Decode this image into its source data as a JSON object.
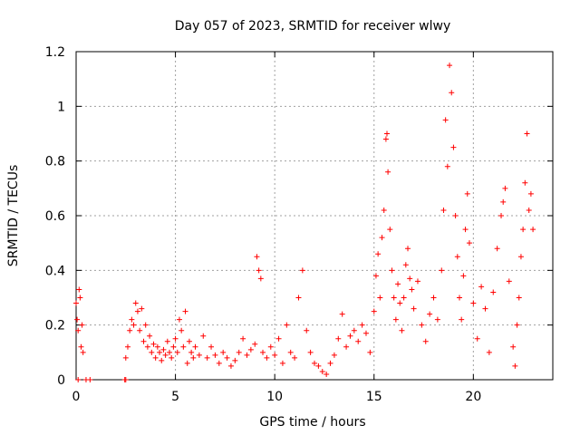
{
  "chart_data": {
    "type": "scatter",
    "title": "Day 057 of 2023, SRMTID for receiver wlwy",
    "xlabel": "GPS time / hours",
    "ylabel": "SRMTID / TECUs",
    "xlim": [
      0,
      24
    ],
    "ylim": [
      0,
      1.2
    ],
    "xticks": [
      0,
      5,
      10,
      15,
      20
    ],
    "xtick_labels": [
      "0",
      "5",
      "10",
      "15",
      "20"
    ],
    "yticks": [
      0,
      0.2,
      0.4,
      0.6,
      0.8,
      1.0,
      1.2
    ],
    "ytick_labels": [
      "0",
      "0.2",
      "0.4",
      "0.6",
      "0.8",
      "1",
      "1.2"
    ],
    "grid": true,
    "marker": "plus",
    "color": "#ff0000",
    "series": [
      {
        "name": "SRMTID",
        "points": [
          [
            0.0,
            0.28
          ],
          [
            0.05,
            0.22
          ],
          [
            0.1,
            0.18
          ],
          [
            0.15,
            0.33
          ],
          [
            0.2,
            0.3
          ],
          [
            0.25,
            0.12
          ],
          [
            0.3,
            0.2
          ],
          [
            0.35,
            0.1
          ],
          [
            0.1,
            0.0
          ],
          [
            0.5,
            0.0
          ],
          [
            0.7,
            0.0
          ],
          [
            2.45,
            0.0
          ],
          [
            2.5,
            0.0
          ],
          [
            2.5,
            0.08
          ],
          [
            2.6,
            0.12
          ],
          [
            2.7,
            0.18
          ],
          [
            2.8,
            0.22
          ],
          [
            2.9,
            0.2
          ],
          [
            3.0,
            0.28
          ],
          [
            3.1,
            0.25
          ],
          [
            3.2,
            0.18
          ],
          [
            3.3,
            0.26
          ],
          [
            3.4,
            0.14
          ],
          [
            3.5,
            0.2
          ],
          [
            3.6,
            0.12
          ],
          [
            3.7,
            0.16
          ],
          [
            3.8,
            0.1
          ],
          [
            3.9,
            0.13
          ],
          [
            4.0,
            0.08
          ],
          [
            4.1,
            0.12
          ],
          [
            4.2,
            0.1
          ],
          [
            4.3,
            0.07
          ],
          [
            4.4,
            0.11
          ],
          [
            4.5,
            0.09
          ],
          [
            4.6,
            0.14
          ],
          [
            4.7,
            0.1
          ],
          [
            4.8,
            0.08
          ],
          [
            4.9,
            0.12
          ],
          [
            5.0,
            0.15
          ],
          [
            5.1,
            0.1
          ],
          [
            5.2,
            0.22
          ],
          [
            5.3,
            0.18
          ],
          [
            5.4,
            0.12
          ],
          [
            5.5,
            0.25
          ],
          [
            5.6,
            0.06
          ],
          [
            5.7,
            0.14
          ],
          [
            5.8,
            0.1
          ],
          [
            5.9,
            0.08
          ],
          [
            6.0,
            0.12
          ],
          [
            6.2,
            0.09
          ],
          [
            6.4,
            0.16
          ],
          [
            6.6,
            0.08
          ],
          [
            6.8,
            0.12
          ],
          [
            7.0,
            0.09
          ],
          [
            7.2,
            0.06
          ],
          [
            7.4,
            0.1
          ],
          [
            7.6,
            0.08
          ],
          [
            7.8,
            0.05
          ],
          [
            8.0,
            0.07
          ],
          [
            8.2,
            0.1
          ],
          [
            8.4,
            0.15
          ],
          [
            8.6,
            0.09
          ],
          [
            8.8,
            0.11
          ],
          [
            9.0,
            0.13
          ],
          [
            9.1,
            0.45
          ],
          [
            9.2,
            0.4
          ],
          [
            9.3,
            0.37
          ],
          [
            9.4,
            0.1
          ],
          [
            9.6,
            0.08
          ],
          [
            9.8,
            0.12
          ],
          [
            10.0,
            0.09
          ],
          [
            10.2,
            0.15
          ],
          [
            10.4,
            0.06
          ],
          [
            10.6,
            0.2
          ],
          [
            10.8,
            0.1
          ],
          [
            11.0,
            0.08
          ],
          [
            11.2,
            0.3
          ],
          [
            11.4,
            0.4
          ],
          [
            11.6,
            0.18
          ],
          [
            11.8,
            0.1
          ],
          [
            12.0,
            0.06
          ],
          [
            12.2,
            0.05
          ],
          [
            12.4,
            0.03
          ],
          [
            12.6,
            0.02
          ],
          [
            12.8,
            0.06
          ],
          [
            13.0,
            0.09
          ],
          [
            13.2,
            0.15
          ],
          [
            13.4,
            0.24
          ],
          [
            13.6,
            0.12
          ],
          [
            13.8,
            0.16
          ],
          [
            14.0,
            0.18
          ],
          [
            14.2,
            0.14
          ],
          [
            14.4,
            0.2
          ],
          [
            14.6,
            0.17
          ],
          [
            14.8,
            0.1
          ],
          [
            15.0,
            0.25
          ],
          [
            15.1,
            0.38
          ],
          [
            15.2,
            0.46
          ],
          [
            15.3,
            0.3
          ],
          [
            15.4,
            0.52
          ],
          [
            15.5,
            0.62
          ],
          [
            15.6,
            0.88
          ],
          [
            15.65,
            0.9
          ],
          [
            15.7,
            0.76
          ],
          [
            15.8,
            0.55
          ],
          [
            15.9,
            0.4
          ],
          [
            16.0,
            0.3
          ],
          [
            16.1,
            0.22
          ],
          [
            16.2,
            0.35
          ],
          [
            16.3,
            0.28
          ],
          [
            16.4,
            0.18
          ],
          [
            16.5,
            0.3
          ],
          [
            16.6,
            0.42
          ],
          [
            16.7,
            0.48
          ],
          [
            16.8,
            0.37
          ],
          [
            16.9,
            0.33
          ],
          [
            17.0,
            0.26
          ],
          [
            17.2,
            0.36
          ],
          [
            17.4,
            0.2
          ],
          [
            17.6,
            0.14
          ],
          [
            17.8,
            0.24
          ],
          [
            18.0,
            0.3
          ],
          [
            18.2,
            0.22
          ],
          [
            18.4,
            0.4
          ],
          [
            18.5,
            0.62
          ],
          [
            18.6,
            0.95
          ],
          [
            18.7,
            0.78
          ],
          [
            18.8,
            1.15
          ],
          [
            18.9,
            1.05
          ],
          [
            19.0,
            0.85
          ],
          [
            19.1,
            0.6
          ],
          [
            19.2,
            0.45
          ],
          [
            19.3,
            0.3
          ],
          [
            19.4,
            0.22
          ],
          [
            19.5,
            0.38
          ],
          [
            19.6,
            0.55
          ],
          [
            19.7,
            0.68
          ],
          [
            19.8,
            0.5
          ],
          [
            20.0,
            0.28
          ],
          [
            20.2,
            0.15
          ],
          [
            20.4,
            0.34
          ],
          [
            20.6,
            0.26
          ],
          [
            20.8,
            0.1
          ],
          [
            21.0,
            0.32
          ],
          [
            21.2,
            0.48
          ],
          [
            21.4,
            0.6
          ],
          [
            21.5,
            0.65
          ],
          [
            21.6,
            0.7
          ],
          [
            21.8,
            0.36
          ],
          [
            22.0,
            0.12
          ],
          [
            22.1,
            0.05
          ],
          [
            22.2,
            0.2
          ],
          [
            22.3,
            0.3
          ],
          [
            22.4,
            0.45
          ],
          [
            22.5,
            0.55
          ],
          [
            22.6,
            0.72
          ],
          [
            22.7,
            0.9
          ],
          [
            22.8,
            0.62
          ],
          [
            22.9,
            0.68
          ],
          [
            23.0,
            0.55
          ]
        ]
      }
    ]
  }
}
